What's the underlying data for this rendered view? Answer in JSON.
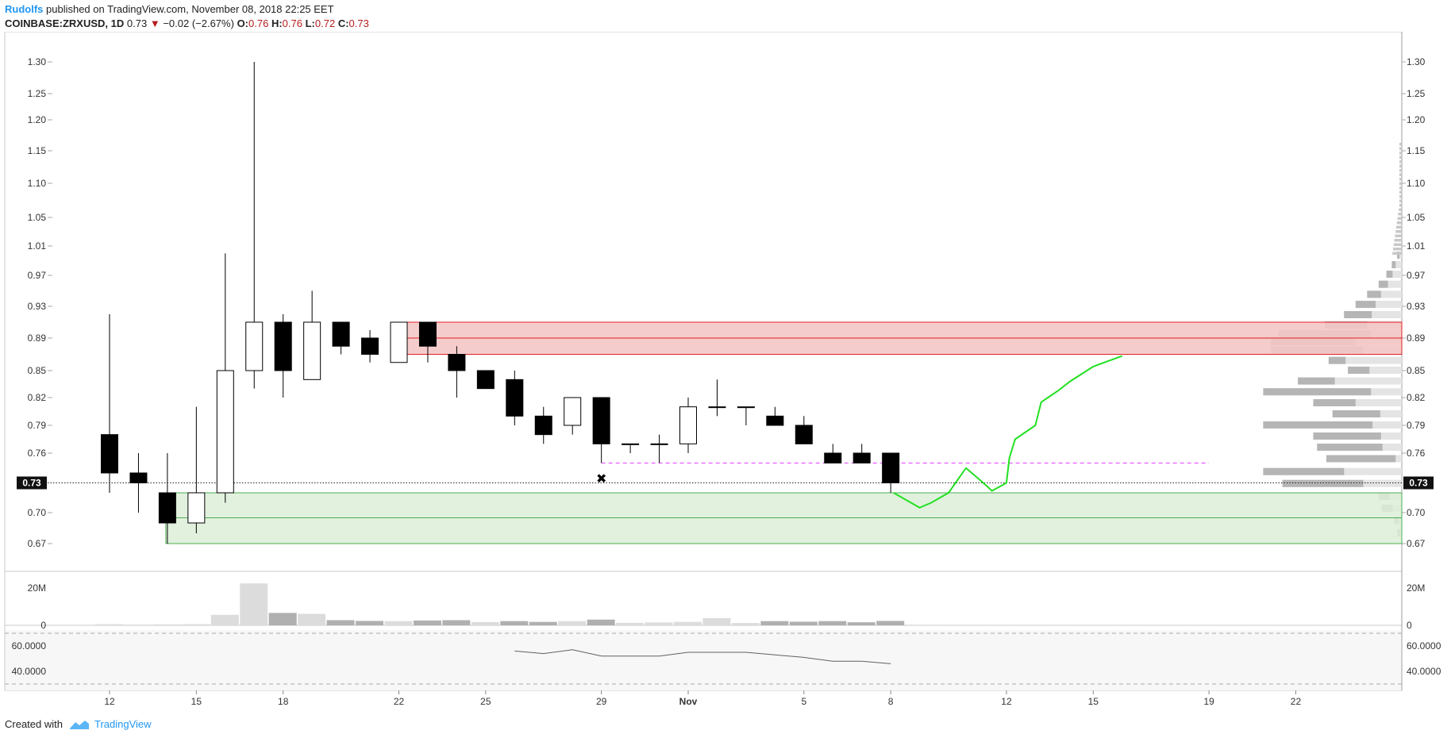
{
  "header": {
    "author": "Rudolfs",
    "published": " published on TradingView.com, November 08, 2018 22:25 EET",
    "symbol": "COINBASE:ZRXUSD, 1D",
    "last": "0.73",
    "arrow": "▼",
    "change": "−0.02 (−2.67%)",
    "o_label": "O:",
    "o_val": "0.76",
    "h_label": "H:",
    "h_val": "0.76",
    "l_label": "L:",
    "l_val": "0.72",
    "c_label": "C:",
    "c_val": "0.73"
  },
  "footer": {
    "created": "Created with",
    "brand": "TradingView"
  },
  "colors": {
    "bear": "#000000",
    "bull": "#ffffff",
    "resistance_fill": "#f4c6c7",
    "resistance_line": "#e02020",
    "support_fill": "#dcefd8",
    "support_line": "#4caf50",
    "path": "#22e022",
    "dash_level": "#e040fb",
    "volume": "#b0b0b0",
    "rsi_line": "#606060",
    "profile": "#b5b5b5"
  },
  "chart_data": {
    "type": "candlestick",
    "title": "COINBASE:ZRXUSD, 1D",
    "price_ticks": [
      "1.30",
      "1.25",
      "1.20",
      "1.15",
      "1.10",
      "1.05",
      "1.01",
      "0.97",
      "0.93",
      "0.89",
      "0.85",
      "0.82",
      "0.79",
      "0.76",
      "0.70",
      "0.67"
    ],
    "current_price": "0.73",
    "x_ticks": [
      {
        "label": "12",
        "day": 0
      },
      {
        "label": "15",
        "day": 3
      },
      {
        "label": "18",
        "day": 6
      },
      {
        "label": "22",
        "day": 10
      },
      {
        "label": "25",
        "day": 13
      },
      {
        "label": "29",
        "day": 17
      },
      {
        "label": "Nov",
        "day": 20
      },
      {
        "label": "5",
        "day": 24
      },
      {
        "label": "8",
        "day": 27
      },
      {
        "label": "12",
        "day": 31
      },
      {
        "label": "15",
        "day": 34
      },
      {
        "label": "19",
        "day": 38
      },
      {
        "label": "22",
        "day": 41
      }
    ],
    "candles": [
      {
        "d": 0,
        "o": 0.78,
        "h": 0.92,
        "l": 0.72,
        "c": 0.74
      },
      {
        "d": 1,
        "o": 0.74,
        "h": 0.76,
        "l": 0.7,
        "c": 0.73
      },
      {
        "d": 2,
        "o": 0.72,
        "h": 0.76,
        "l": 0.67,
        "c": 0.69
      },
      {
        "d": 3,
        "o": 0.69,
        "h": 0.81,
        "l": 0.68,
        "c": 0.72
      },
      {
        "d": 4,
        "o": 0.72,
        "h": 1.0,
        "l": 0.71,
        "c": 0.85
      },
      {
        "d": 5,
        "o": 0.85,
        "h": 1.3,
        "l": 0.83,
        "c": 0.91
      },
      {
        "d": 6,
        "o": 0.91,
        "h": 0.92,
        "l": 0.82,
        "c": 0.85
      },
      {
        "d": 7,
        "o": 0.84,
        "h": 0.95,
        "l": 0.84,
        "c": 0.91
      },
      {
        "d": 8,
        "o": 0.91,
        "h": 0.91,
        "l": 0.87,
        "c": 0.88
      },
      {
        "d": 9,
        "o": 0.89,
        "h": 0.9,
        "l": 0.86,
        "c": 0.87
      },
      {
        "d": 10,
        "o": 0.86,
        "h": 0.91,
        "l": 0.86,
        "c": 0.91
      },
      {
        "d": 11,
        "o": 0.91,
        "h": 0.91,
        "l": 0.86,
        "c": 0.88
      },
      {
        "d": 12,
        "o": 0.87,
        "h": 0.88,
        "l": 0.82,
        "c": 0.85
      },
      {
        "d": 13,
        "o": 0.85,
        "h": 0.85,
        "l": 0.83,
        "c": 0.83
      },
      {
        "d": 14,
        "o": 0.84,
        "h": 0.85,
        "l": 0.79,
        "c": 0.8
      },
      {
        "d": 15,
        "o": 0.8,
        "h": 0.81,
        "l": 0.77,
        "c": 0.78
      },
      {
        "d": 16,
        "o": 0.79,
        "h": 0.82,
        "l": 0.78,
        "c": 0.82
      },
      {
        "d": 17,
        "o": 0.82,
        "h": 0.82,
        "l": 0.75,
        "c": 0.77
      },
      {
        "d": 18,
        "o": 0.77,
        "h": 0.77,
        "l": 0.76,
        "c": 0.77
      },
      {
        "d": 19,
        "o": 0.77,
        "h": 0.78,
        "l": 0.75,
        "c": 0.77
      },
      {
        "d": 20,
        "o": 0.77,
        "h": 0.82,
        "l": 0.76,
        "c": 0.81
      },
      {
        "d": 21,
        "o": 0.81,
        "h": 0.84,
        "l": 0.8,
        "c": 0.81
      },
      {
        "d": 22,
        "o": 0.81,
        "h": 0.81,
        "l": 0.79,
        "c": 0.81
      },
      {
        "d": 23,
        "o": 0.8,
        "h": 0.81,
        "l": 0.79,
        "c": 0.79
      },
      {
        "d": 24,
        "o": 0.79,
        "h": 0.8,
        "l": 0.77,
        "c": 0.77
      },
      {
        "d": 25,
        "o": 0.76,
        "h": 0.77,
        "l": 0.75,
        "c": 0.75
      },
      {
        "d": 26,
        "o": 0.76,
        "h": 0.77,
        "l": 0.75,
        "c": 0.75
      },
      {
        "d": 27,
        "o": 0.76,
        "h": 0.76,
        "l": 0.72,
        "c": 0.73
      }
    ],
    "resistance_zone": {
      "from_day": 10,
      "top": 0.91,
      "bottom": 0.87,
      "mid": 0.89
    },
    "support_zone": {
      "from_day": 2,
      "top": 0.72,
      "bottom": 0.67,
      "mid": 0.695
    },
    "dashed_level": {
      "price": 0.75,
      "from_day": 17,
      "to_day": 38
    },
    "marker": {
      "symbol": "✖",
      "day": 17,
      "price": 0.735
    },
    "projected_path": [
      {
        "d": 27.1,
        "p": 0.72
      },
      {
        "d": 28,
        "p": 0.705
      },
      {
        "d": 28.4,
        "p": 0.71
      },
      {
        "d": 29,
        "p": 0.72
      },
      {
        "d": 29.6,
        "p": 0.745
      },
      {
        "d": 30.2,
        "p": 0.73
      },
      {
        "d": 30.5,
        "p": 0.722
      },
      {
        "d": 31,
        "p": 0.73
      },
      {
        "d": 31.1,
        "p": 0.755
      },
      {
        "d": 31.3,
        "p": 0.775
      },
      {
        "d": 32,
        "p": 0.79
      },
      {
        "d": 32.2,
        "p": 0.815
      },
      {
        "d": 32.8,
        "p": 0.828
      },
      {
        "d": 33.2,
        "p": 0.838
      },
      {
        "d": 34,
        "p": 0.855
      },
      {
        "d": 35,
        "p": 0.868
      }
    ],
    "volume": {
      "ticks": [
        "20M",
        "0"
      ],
      "values_millions": [
        0.6,
        0.4,
        0.5,
        0.6,
        5.5,
        22,
        6.5,
        6,
        2.7,
        2.3,
        2.2,
        2.5,
        2.7,
        1.7,
        2.2,
        1.8,
        2.2,
        3.0,
        1.3,
        1.5,
        1.8,
        3.8,
        1.2,
        2.2,
        1.9,
        2.2,
        1.6,
        2.3
      ],
      "dark_days": [
        6,
        8,
        9,
        11,
        12,
        14,
        15,
        17,
        23,
        24,
        25,
        26,
        27
      ]
    },
    "rsi": {
      "ticks": [
        "60.0000",
        "40.0000"
      ],
      "days": [
        14,
        15,
        16,
        17,
        18,
        19,
        20,
        21,
        22,
        23,
        24,
        25,
        26,
        27
      ],
      "values": [
        56,
        54,
        57,
        52,
        52,
        52,
        55,
        55,
        55,
        53,
        51,
        48,
        48,
        46
      ]
    },
    "volume_profile": {
      "rows": [
        {
          "p": 0.997,
          "t": 6,
          "u": 3
        },
        {
          "p": 0.984,
          "t": 13,
          "u": 5
        },
        {
          "p": 0.971,
          "t": 20,
          "u": 8
        },
        {
          "p": 0.958,
          "t": 30,
          "u": 12
        },
        {
          "p": 0.945,
          "t": 45,
          "u": 18
        },
        {
          "p": 0.932,
          "t": 60,
          "u": 26
        },
        {
          "p": 0.919,
          "t": 75,
          "u": 36
        },
        {
          "p": 0.906,
          "t": 100,
          "u": 55
        },
        {
          "p": 0.895,
          "t": 160,
          "u": 120
        },
        {
          "p": 0.885,
          "t": 170,
          "u": 110
        },
        {
          "p": 0.875,
          "t": 170,
          "u": 120
        },
        {
          "p": 0.862,
          "t": 95,
          "u": 22
        },
        {
          "p": 0.85,
          "t": 70,
          "u": 28
        },
        {
          "p": 0.838,
          "t": 135,
          "u": 48
        },
        {
          "p": 0.826,
          "t": 180,
          "u": 140
        },
        {
          "p": 0.814,
          "t": 115,
          "u": 55
        },
        {
          "p": 0.802,
          "t": 90,
          "u": 62
        },
        {
          "p": 0.79,
          "t": 180,
          "u": 142
        },
        {
          "p": 0.778,
          "t": 115,
          "u": 88
        },
        {
          "p": 0.766,
          "t": 110,
          "u": 85
        },
        {
          "p": 0.754,
          "t": 98,
          "u": 90
        },
        {
          "p": 0.741,
          "t": 180,
          "u": 105
        },
        {
          "p": 0.729,
          "t": 155,
          "u": 105
        },
        {
          "p": 0.716,
          "t": 30,
          "u": 14
        },
        {
          "p": 0.704,
          "t": 26,
          "u": 14
        },
        {
          "p": 0.692,
          "t": 10,
          "u": 6
        },
        {
          "p": 0.68,
          "t": 6,
          "u": 4
        }
      ]
    }
  }
}
